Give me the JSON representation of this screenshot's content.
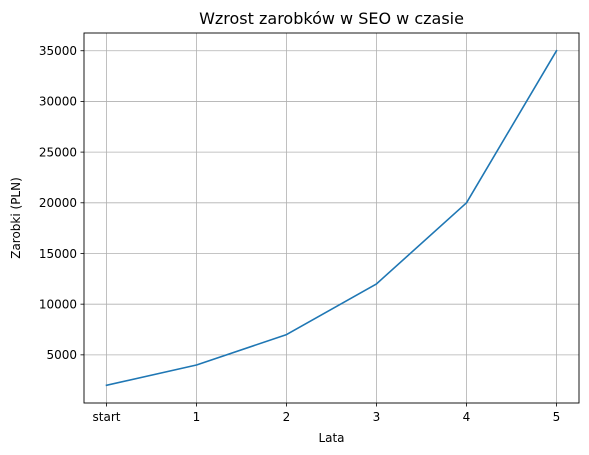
{
  "chart_data": {
    "type": "line",
    "title": "Wzrost zarobków w SEO w czasie",
    "xlabel": "Lata",
    "ylabel": "Zarobki (PLN)",
    "categories": [
      "start",
      "1",
      "2",
      "3",
      "4",
      "5"
    ],
    "series": [
      {
        "values": [
          2000,
          4000,
          7000,
          12000,
          20000,
          35000
        ],
        "color": "#1f77b4"
      }
    ],
    "yticks": [
      5000,
      10000,
      15000,
      20000,
      25000,
      30000,
      35000
    ],
    "ylim": [
      250,
      36750
    ],
    "grid": true,
    "legend": false
  }
}
